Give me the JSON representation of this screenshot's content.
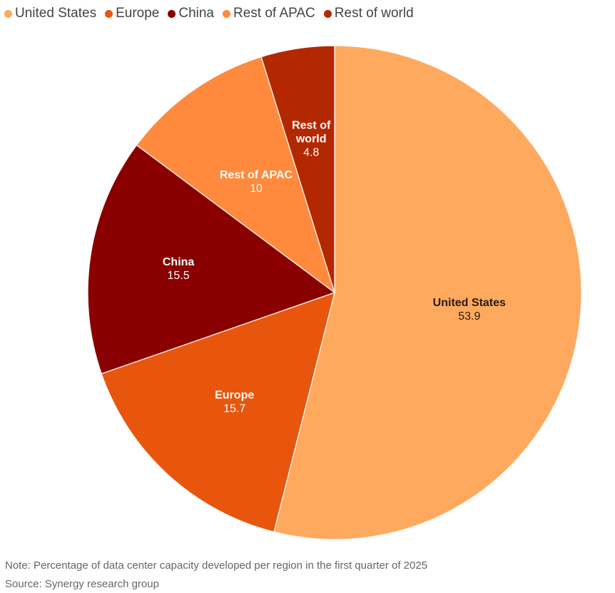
{
  "chart_data": {
    "type": "pie",
    "start_angle_deg": 0,
    "direction": "clockwise",
    "legend_placement": "top-left",
    "slices": [
      {
        "name": "United States",
        "label_lines": [
          "United States"
        ],
        "value": 53.9,
        "value_label": "53.9",
        "color": "#FFA95E",
        "label_color": "#2b1a10"
      },
      {
        "name": "Europe",
        "label_lines": [
          "Europe"
        ],
        "value": 15.7,
        "value_label": "15.7",
        "color": "#E8560E",
        "label_color": "#ffffff"
      },
      {
        "name": "China",
        "label_lines": [
          "China"
        ],
        "value": 15.5,
        "value_label": "15.5",
        "color": "#8A0000",
        "label_color": "#ffffff"
      },
      {
        "name": "Rest of APAC",
        "label_lines": [
          "Rest of APAC"
        ],
        "value": 10,
        "value_label": "10",
        "color": "#FF8A3D",
        "label_color": "#ffffff"
      },
      {
        "name": "Rest of world",
        "label_lines": [
          "Rest of",
          "world"
        ],
        "value": 4.8,
        "value_label": "4.8",
        "color": "#B32800",
        "label_color": "#ffffff"
      }
    ]
  },
  "legend": {
    "items": [
      {
        "label": "United States",
        "color": "#FFA95E"
      },
      {
        "label": "Europe",
        "color": "#E8560E"
      },
      {
        "label": "China",
        "color": "#8A0000"
      },
      {
        "label": "Rest of APAC",
        "color": "#FF8A3D"
      },
      {
        "label": "Rest of world",
        "color": "#B32800"
      }
    ]
  },
  "footer": {
    "note": "Note: Percentage of data center capacity developed per region in the first quarter of 2025",
    "source": "Source: Synergy research group"
  }
}
